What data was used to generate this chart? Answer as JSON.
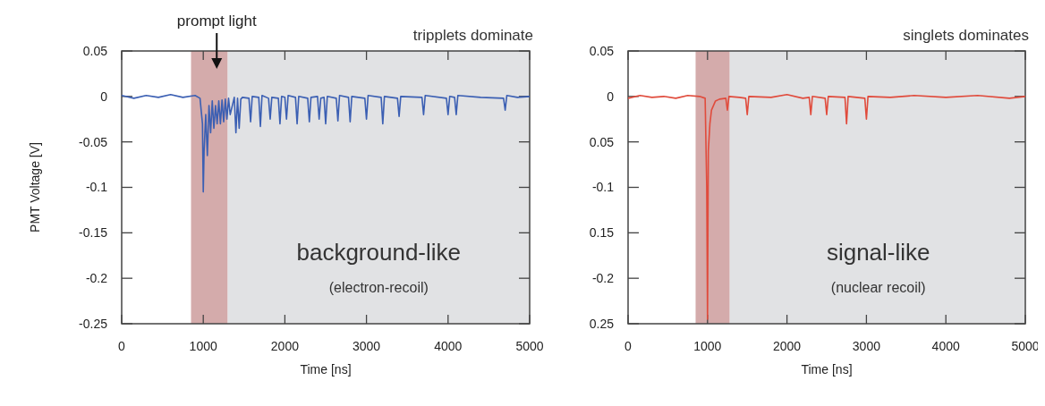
{
  "chart_data": [
    {
      "type": "line",
      "xlabel": "Time [ns]",
      "ylabel": "PMT Voltage [V]",
      "xlim": [
        0,
        5000
      ],
      "ylim": [
        -0.25,
        0.05
      ],
      "xticks": [
        0,
        1000,
        2000,
        3000,
        4000,
        5000
      ],
      "yticks": [
        0.05,
        0,
        -0.05,
        -0.1,
        -0.15,
        -0.2,
        -0.25
      ],
      "grid": false,
      "bands": [
        {
          "axis": "x",
          "from": 850,
          "to": 1300,
          "color": "#d4abab"
        },
        {
          "axis": "x",
          "from": 1300,
          "to": 5000,
          "color": "#e1e2e4"
        }
      ],
      "annotations": [
        "prompt light",
        "tripplets dominate",
        "background-like",
        "(electron-recoil)"
      ],
      "series": [
        {
          "color": "#3b5fb3",
          "x": [
            0,
            150,
            300,
            450,
            600,
            750,
            900,
            960,
            990,
            1000,
            1010,
            1030,
            1050,
            1070,
            1090,
            1110,
            1130,
            1150,
            1170,
            1190,
            1210,
            1230,
            1250,
            1270,
            1290,
            1310,
            1330,
            1380,
            1400,
            1420,
            1440,
            1460,
            1480,
            1560,
            1580,
            1600,
            1680,
            1700,
            1720,
            1800,
            1820,
            1840,
            1920,
            1940,
            1960,
            2000,
            2020,
            2040,
            2130,
            2150,
            2170,
            2280,
            2300,
            2320,
            2400,
            2420,
            2440,
            2480,
            2500,
            2520,
            2630,
            2650,
            2670,
            2780,
            2800,
            2820,
            2980,
            3000,
            3020,
            3180,
            3200,
            3220,
            3380,
            3400,
            3420,
            3680,
            3700,
            3720,
            3980,
            4000,
            4020,
            4080,
            4100,
            4120,
            4400,
            4680,
            4700,
            4720,
            4850,
            5000
          ],
          "values": [
            0.001,
            -0.002,
            0.001,
            -0.001,
            0.002,
            -0.001,
            0.001,
            -0.002,
            -0.03,
            -0.105,
            -0.06,
            -0.02,
            -0.065,
            -0.01,
            -0.04,
            -0.005,
            -0.035,
            -0.01,
            -0.03,
            -0.005,
            -0.03,
            -0.004,
            -0.028,
            -0.003,
            -0.025,
            -0.002,
            -0.02,
            -0.001,
            -0.04,
            -0.002,
            -0.035,
            -0.003,
            -0.001,
            -0.002,
            -0.028,
            0.0,
            -0.001,
            -0.033,
            0.001,
            -0.002,
            -0.025,
            -0.001,
            -0.002,
            -0.03,
            0.0,
            -0.001,
            -0.025,
            0.001,
            -0.001,
            -0.03,
            0.0,
            -0.002,
            -0.028,
            -0.001,
            0.0,
            -0.025,
            -0.002,
            -0.001,
            -0.03,
            0.0,
            -0.002,
            -0.027,
            0.001,
            -0.001,
            -0.028,
            0.0,
            -0.002,
            -0.025,
            0.001,
            -0.001,
            -0.03,
            0.0,
            -0.002,
            -0.022,
            0.0,
            -0.001,
            -0.02,
            0.001,
            -0.002,
            -0.02,
            0.0,
            -0.001,
            -0.02,
            0.001,
            -0.001,
            -0.002,
            -0.015,
            0.001,
            -0.001,
            0.0
          ]
        }
      ]
    },
    {
      "type": "line",
      "xlabel": "Time [ns]",
      "xlim": [
        0,
        5000
      ],
      "ylim": [
        -0.25,
        0.05
      ],
      "xticks": [
        0,
        1000,
        2000,
        3000,
        4000,
        5000
      ],
      "yticks": [
        0.05,
        0,
        {
          "value": -0.05,
          "label": "0.05"
        },
        -0.1,
        {
          "value": -0.15,
          "label": "0.15"
        },
        -0.2,
        {
          "value": -0.25,
          "label": "0.25"
        }
      ],
      "grid": false,
      "bands": [
        {
          "axis": "x",
          "from": 850,
          "to": 1280,
          "color": "#d4abab"
        },
        {
          "axis": "x",
          "from": 1280,
          "to": 5000,
          "color": "#e1e2e4"
        }
      ],
      "annotations": [
        "singlets dominates",
        "signal-like",
        "(nuclear recoil)"
      ],
      "series": [
        {
          "color": "#e04b3c",
          "x": [
            0,
            150,
            300,
            450,
            600,
            750,
            900,
            970,
            990,
            1000,
            1010,
            1030,
            1050,
            1100,
            1150,
            1230,
            1250,
            1270,
            1400,
            1480,
            1500,
            1520,
            1800,
            2000,
            2200,
            2280,
            2300,
            2320,
            2480,
            2500,
            2520,
            2730,
            2750,
            2770,
            2980,
            3000,
            3020,
            3300,
            3600,
            4000,
            4400,
            4800,
            5000
          ],
          "values": [
            -0.002,
            0.001,
            -0.001,
            0.0,
            -0.002,
            0.001,
            0.0,
            -0.002,
            -0.1,
            -0.245,
            -0.06,
            -0.03,
            -0.015,
            -0.005,
            -0.003,
            -0.002,
            -0.015,
            0.0,
            -0.001,
            -0.002,
            -0.02,
            0.0,
            -0.001,
            0.002,
            -0.002,
            -0.001,
            -0.02,
            0.0,
            -0.002,
            -0.02,
            0.0,
            -0.001,
            -0.03,
            0.0,
            -0.002,
            -0.025,
            0.0,
            -0.001,
            0.001,
            -0.001,
            0.001,
            -0.002,
            0.0
          ]
        }
      ]
    }
  ]
}
